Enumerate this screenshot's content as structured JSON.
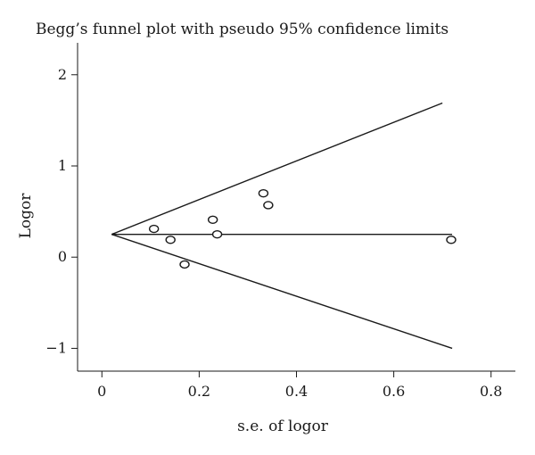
{
  "chart_data": {
    "type": "scatter",
    "title": "Begg’s funnel plot with pseudo 95% confidence limits",
    "xlabel": "s.e. of logor",
    "ylabel": "Logor",
    "xlim": [
      -0.05,
      0.85
    ],
    "ylim": [
      -1.25,
      2.35
    ],
    "x_ticks": [
      0,
      0.2,
      0.4,
      0.6,
      0.8
    ],
    "x_tick_labels": [
      "0",
      "0.2",
      "0.4",
      "0.6",
      "0.8"
    ],
    "y_ticks": [
      -1,
      0,
      1,
      2
    ],
    "y_tick_labels": [
      "−1",
      "0",
      "1",
      "2"
    ],
    "grid": false,
    "legend": "none",
    "points": [
      {
        "x": 0.107,
        "y": 0.31
      },
      {
        "x": 0.141,
        "y": 0.19
      },
      {
        "x": 0.17,
        "y": -0.08
      },
      {
        "x": 0.228,
        "y": 0.41
      },
      {
        "x": 0.237,
        "y": 0.25
      },
      {
        "x": 0.332,
        "y": 0.7
      },
      {
        "x": 0.342,
        "y": 0.57
      },
      {
        "x": 0.718,
        "y": 0.19
      }
    ],
    "pooled_estimate": 0.25,
    "pooled_line_x": [
      0.02,
      0.72
    ],
    "upper_limit_line": {
      "x": [
        0.02,
        0.7
      ],
      "y": [
        0.25,
        1.69
      ]
    },
    "lower_limit_line": {
      "x": [
        0.02,
        0.72
      ],
      "y": [
        0.25,
        -1.0
      ]
    }
  }
}
